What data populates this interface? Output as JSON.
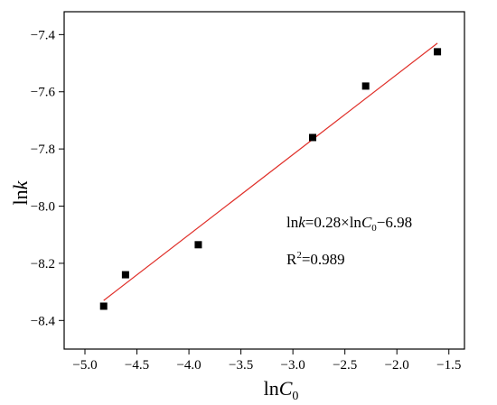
{
  "chart_data": {
    "type": "scatter",
    "title": "",
    "xlabel": {
      "base": "ln",
      "var": "C",
      "sub": "0"
    },
    "ylabel": {
      "base": "ln",
      "var": "k"
    },
    "xlim": [
      -5.2,
      -1.35
    ],
    "ylim": [
      -8.5,
      -7.32
    ],
    "xticks": [
      -5.0,
      -4.5,
      -4.0,
      -3.5,
      -3.0,
      -2.5,
      -2.0,
      -1.5
    ],
    "xtick_labels": [
      "−5.0",
      "−4.5",
      "−4.0",
      "−3.5",
      "−3.0",
      "−2.5",
      "−2.0",
      "−1.5"
    ],
    "yticks": [
      -8.4,
      -8.2,
      -8.0,
      -7.8,
      -7.6,
      -7.4
    ],
    "ytick_labels": [
      "−8.4",
      "−8.2",
      "−8.0",
      "−7.8",
      "−7.6",
      "−7.4"
    ],
    "grid": false,
    "points": [
      {
        "x": -4.82,
        "y": -8.35
      },
      {
        "x": -4.61,
        "y": -8.24
      },
      {
        "x": -3.91,
        "y": -8.135
      },
      {
        "x": -2.81,
        "y": -7.76
      },
      {
        "x": -2.3,
        "y": -7.58
      },
      {
        "x": -1.61,
        "y": -7.46
      }
    ],
    "fit_line": {
      "x": [
        -4.82,
        -1.61
      ],
      "y": [
        -8.33,
        -7.43
      ],
      "color": "#e0302a"
    },
    "marker_color": "#000000",
    "annotations": {
      "equation": {
        "a": "ln",
        "b": "k",
        "c": "=0.28×ln",
        "d": "C",
        "e": "0",
        "f": "−6.98"
      },
      "r2": {
        "a": "R",
        "b": "2",
        "c": "=0.989"
      }
    }
  }
}
